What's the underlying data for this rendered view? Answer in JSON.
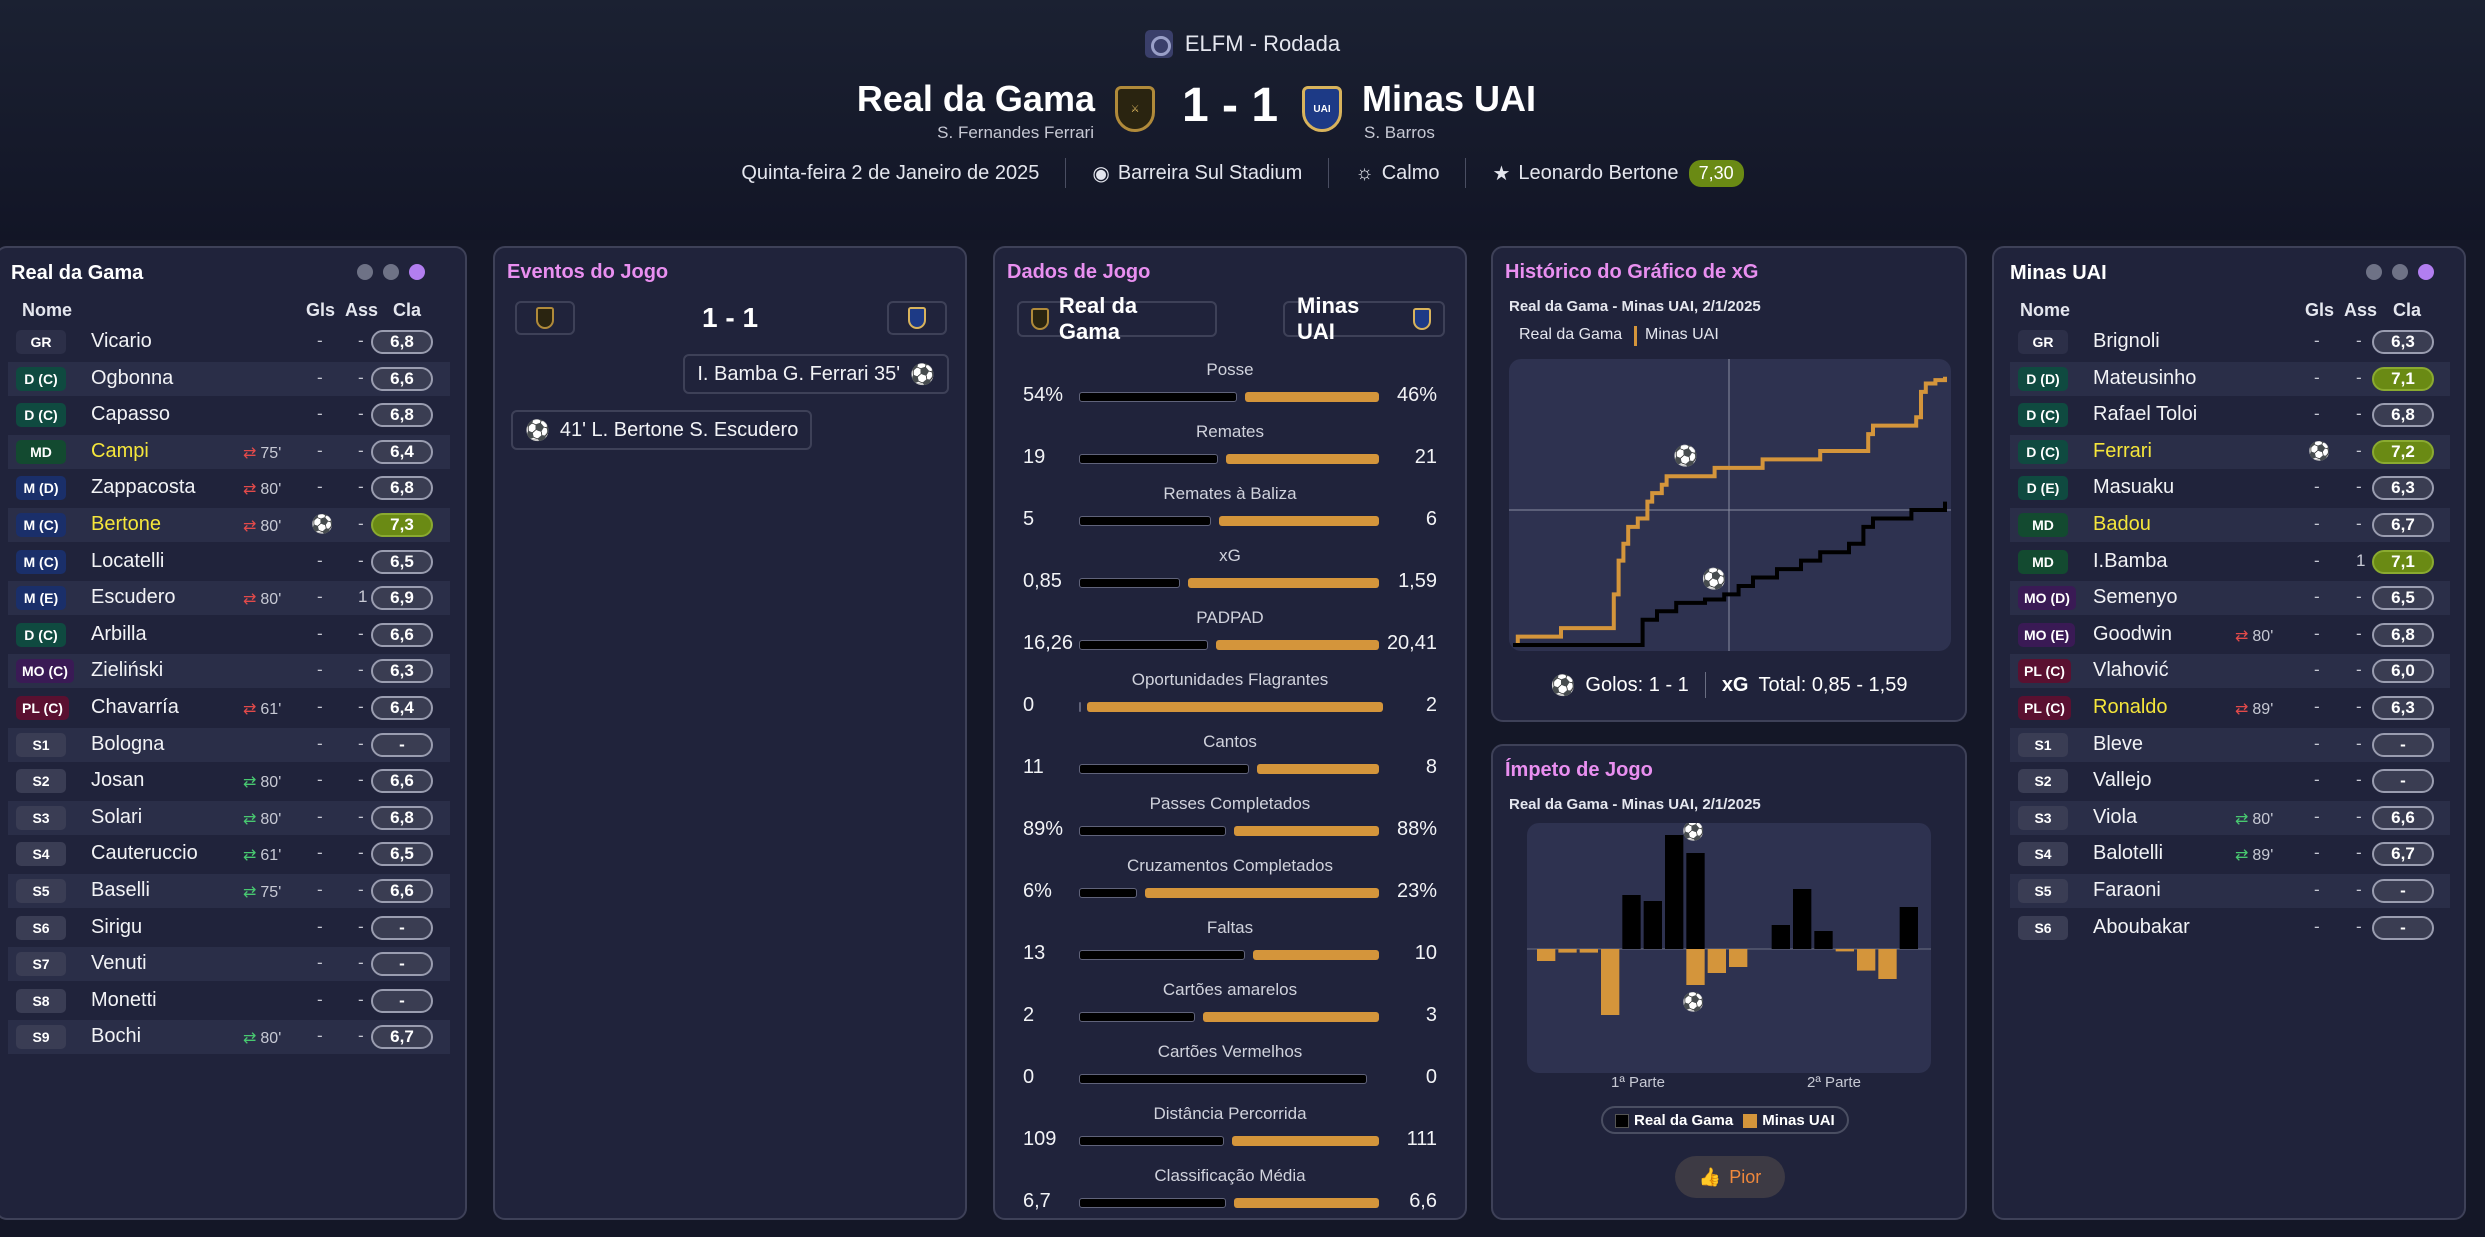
{
  "header": {
    "competition": "ELFM - Rodada",
    "home_team": "Real da Gama",
    "away_team": "Minas UAI",
    "home_manager": "S. Fernandes Ferrari",
    "away_manager": "S. Barros",
    "score": "1 - 1",
    "date": "Quinta-feira 2 de Janeiro de 2025",
    "stadium": "Barreira Sul Stadium",
    "weather": "Calmo",
    "motm_name": "Leonardo Bertone",
    "motm_rating": "7,30"
  },
  "colors": {
    "accent": "#e98ff0",
    "home": "#000000",
    "away": "#d4953b",
    "rating_good": "#6a8a14"
  },
  "icons": {
    "stadium": "stadium-icon",
    "weather": "sun-icon",
    "motm": "star-icon",
    "goal": "football-icon",
    "sub": "substitution-icon",
    "thumb": "thumbs-up-icon"
  },
  "home_panel": {
    "title": "Real da Gama",
    "col_name": "Nome",
    "col_goals": "Gls",
    "col_assists": "Ass",
    "col_rating": "Cla",
    "players": [
      {
        "pos": "GR",
        "name": "Vicario",
        "sub": "",
        "goal_icon": false,
        "gls": "-",
        "ass": "-",
        "rating": "6,8",
        "hl": false,
        "good": false
      },
      {
        "pos": "D (C)",
        "name": "Ogbonna",
        "sub": "",
        "goal_icon": false,
        "gls": "-",
        "ass": "-",
        "rating": "6,6",
        "hl": false,
        "good": false
      },
      {
        "pos": "D (C)",
        "name": "Capasso",
        "sub": "",
        "goal_icon": false,
        "gls": "-",
        "ass": "-",
        "rating": "6,8",
        "hl": false,
        "good": false
      },
      {
        "pos": "MD",
        "name": "Campi",
        "sub": "75'",
        "subdir": "out",
        "goal_icon": false,
        "gls": "-",
        "ass": "-",
        "rating": "6,4",
        "hl": true,
        "good": false
      },
      {
        "pos": "M (D)",
        "name": "Zappacosta",
        "sub": "80'",
        "subdir": "out",
        "goal_icon": false,
        "gls": "-",
        "ass": "-",
        "rating": "6,8",
        "hl": false,
        "good": false
      },
      {
        "pos": "M (C)",
        "name": "Bertone",
        "sub": "80'",
        "subdir": "out",
        "goal_icon": true,
        "gls": "",
        "ass": "-",
        "rating": "7,3",
        "hl": true,
        "good": true
      },
      {
        "pos": "M (C)",
        "name": "Locatelli",
        "sub": "",
        "goal_icon": false,
        "gls": "-",
        "ass": "-",
        "rating": "6,5",
        "hl": false,
        "good": false
      },
      {
        "pos": "M (E)",
        "name": "Escudero",
        "sub": "80'",
        "subdir": "out",
        "goal_icon": false,
        "gls": "-",
        "ass": "1",
        "rating": "6,9",
        "hl": false,
        "good": false
      },
      {
        "pos": "D (C)",
        "name": "Arbilla",
        "sub": "",
        "goal_icon": false,
        "gls": "-",
        "ass": "-",
        "rating": "6,6",
        "hl": false,
        "good": false
      },
      {
        "pos": "MO (C)",
        "name": "Zieliński",
        "sub": "",
        "goal_icon": false,
        "gls": "-",
        "ass": "-",
        "rating": "6,3",
        "hl": false,
        "good": false
      },
      {
        "pos": "PL (C)",
        "name": "Chavarría",
        "sub": "61'",
        "subdir": "out",
        "goal_icon": false,
        "gls": "-",
        "ass": "-",
        "rating": "6,4",
        "hl": false,
        "good": false
      },
      {
        "pos": "S1",
        "name": "Bologna",
        "sub": "",
        "goal_icon": false,
        "gls": "-",
        "ass": "-",
        "rating": "-",
        "hl": false,
        "good": false
      },
      {
        "pos": "S2",
        "name": "Josan",
        "sub": "80'",
        "subdir": "in",
        "goal_icon": false,
        "gls": "-",
        "ass": "-",
        "rating": "6,6",
        "hl": false,
        "good": false
      },
      {
        "pos": "S3",
        "name": "Solari",
        "sub": "80'",
        "subdir": "in",
        "goal_icon": false,
        "gls": "-",
        "ass": "-",
        "rating": "6,8",
        "hl": false,
        "good": false
      },
      {
        "pos": "S4",
        "name": "Cauteruccio",
        "sub": "61'",
        "subdir": "in",
        "goal_icon": false,
        "gls": "-",
        "ass": "-",
        "rating": "6,5",
        "hl": false,
        "good": false
      },
      {
        "pos": "S5",
        "name": "Baselli",
        "sub": "75'",
        "subdir": "in",
        "goal_icon": false,
        "gls": "-",
        "ass": "-",
        "rating": "6,6",
        "hl": false,
        "good": false
      },
      {
        "pos": "S6",
        "name": "Sirigu",
        "sub": "",
        "goal_icon": false,
        "gls": "-",
        "ass": "-",
        "rating": "-",
        "hl": false,
        "good": false
      },
      {
        "pos": "S7",
        "name": "Venuti",
        "sub": "",
        "goal_icon": false,
        "gls": "-",
        "ass": "-",
        "rating": "-",
        "hl": false,
        "good": false
      },
      {
        "pos": "S8",
        "name": "Monetti",
        "sub": "",
        "goal_icon": false,
        "gls": "-",
        "ass": "-",
        "rating": "-",
        "hl": false,
        "good": false
      },
      {
        "pos": "S9",
        "name": "Bochi",
        "sub": "80'",
        "subdir": "in",
        "goal_icon": false,
        "gls": "-",
        "ass": "-",
        "rating": "6,7",
        "hl": false,
        "good": false
      }
    ]
  },
  "away_panel": {
    "title": "Minas UAI",
    "col_name": "Nome",
    "col_goals": "Gls",
    "col_assists": "Ass",
    "col_rating": "Cla",
    "players": [
      {
        "pos": "GR",
        "name": "Brignoli",
        "sub": "",
        "goal_icon": false,
        "gls": "-",
        "ass": "-",
        "rating": "6,3",
        "hl": false,
        "good": false
      },
      {
        "pos": "D (D)",
        "name": "Mateusinho",
        "sub": "",
        "goal_icon": false,
        "gls": "-",
        "ass": "-",
        "rating": "7,1",
        "hl": false,
        "good": true
      },
      {
        "pos": "D (C)",
        "name": "Rafael Toloi",
        "sub": "",
        "goal_icon": false,
        "gls": "-",
        "ass": "-",
        "rating": "6,8",
        "hl": false,
        "good": false
      },
      {
        "pos": "D (C)",
        "name": "Ferrari",
        "sub": "",
        "goal_icon": true,
        "gls": "",
        "ass": "-",
        "rating": "7,2",
        "hl": true,
        "good": true
      },
      {
        "pos": "D (E)",
        "name": "Masuaku",
        "sub": "",
        "goal_icon": false,
        "gls": "-",
        "ass": "-",
        "rating": "6,3",
        "hl": false,
        "good": false
      },
      {
        "pos": "MD",
        "name": "Badou",
        "sub": "",
        "goal_icon": false,
        "gls": "-",
        "ass": "-",
        "rating": "6,7",
        "hl": true,
        "good": false
      },
      {
        "pos": "MD",
        "name": "I.Bamba",
        "sub": "",
        "goal_icon": false,
        "gls": "-",
        "ass": "1",
        "rating": "7,1",
        "hl": false,
        "good": true
      },
      {
        "pos": "MO (D)",
        "name": "Semenyo",
        "sub": "",
        "goal_icon": false,
        "gls": "-",
        "ass": "-",
        "rating": "6,5",
        "hl": false,
        "good": false
      },
      {
        "pos": "MO (E)",
        "name": "Goodwin",
        "sub": "80'",
        "subdir": "out",
        "goal_icon": false,
        "gls": "-",
        "ass": "-",
        "rating": "6,8",
        "hl": false,
        "good": false
      },
      {
        "pos": "PL (C)",
        "name": "Vlahović",
        "sub": "",
        "goal_icon": false,
        "gls": "-",
        "ass": "-",
        "rating": "6,0",
        "hl": false,
        "good": false
      },
      {
        "pos": "PL (C)",
        "name": "Ronaldo",
        "sub": "89'",
        "subdir": "out",
        "goal_icon": false,
        "gls": "-",
        "ass": "-",
        "rating": "6,3",
        "hl": true,
        "good": false
      },
      {
        "pos": "S1",
        "name": "Bleve",
        "sub": "",
        "goal_icon": false,
        "gls": "-",
        "ass": "-",
        "rating": "-",
        "hl": false,
        "good": false
      },
      {
        "pos": "S2",
        "name": "Vallejo",
        "sub": "",
        "goal_icon": false,
        "gls": "-",
        "ass": "-",
        "rating": "-",
        "hl": false,
        "good": false
      },
      {
        "pos": "S3",
        "name": "Viola",
        "sub": "80'",
        "subdir": "in",
        "goal_icon": false,
        "gls": "-",
        "ass": "-",
        "rating": "6,6",
        "hl": false,
        "good": false
      },
      {
        "pos": "S4",
        "name": "Balotelli",
        "sub": "89'",
        "subdir": "in",
        "goal_icon": false,
        "gls": "-",
        "ass": "-",
        "rating": "6,7",
        "hl": false,
        "good": false
      },
      {
        "pos": "S5",
        "name": "Faraoni",
        "sub": "",
        "goal_icon": false,
        "gls": "-",
        "ass": "-",
        "rating": "-",
        "hl": false,
        "good": false
      },
      {
        "pos": "S6",
        "name": "Aboubakar",
        "sub": "",
        "goal_icon": false,
        "gls": "-",
        "ass": "-",
        "rating": "-",
        "hl": false,
        "good": false
      }
    ]
  },
  "events_panel": {
    "title": "Eventos do Jogo",
    "score": "1 - 1",
    "home_event": "I. Bamba  G. Ferrari 35'",
    "away_event": "41'  L. Bertone  S. Escudero"
  },
  "stats_panel": {
    "title": "Dados de Jogo",
    "home": "Real da Gama",
    "away": "Minas UAI",
    "stats": [
      {
        "label": "Posse",
        "home": "54%",
        "away": "46%",
        "hv": 54,
        "av": 46
      },
      {
        "label": "Remates",
        "home": "19",
        "away": "21",
        "hv": 19,
        "av": 21
      },
      {
        "label": "Remates à Baliza",
        "home": "5",
        "away": "6",
        "hv": 5,
        "av": 6
      },
      {
        "label": "xG",
        "home": "0,85",
        "away": "1,59",
        "hv": 0.85,
        "av": 1.59
      },
      {
        "label": "PADPAD",
        "home": "16,26",
        "away": "20,41",
        "hv": 16.26,
        "av": 20.41
      },
      {
        "label": "Oportunidades Flagrantes",
        "home": "0",
        "away": "2",
        "hv": 0,
        "av": 2
      },
      {
        "label": "Cantos",
        "home": "11",
        "away": "8",
        "hv": 11,
        "av": 8
      },
      {
        "label": "Passes Completados",
        "home": "89%",
        "away": "88%",
        "hv": 89,
        "av": 88
      },
      {
        "label": "Cruzamentos Completados",
        "home": "6%",
        "away": "23%",
        "hv": 6,
        "av": 23
      },
      {
        "label": "Faltas",
        "home": "13",
        "away": "10",
        "hv": 13,
        "av": 10
      },
      {
        "label": "Cartões amarelos",
        "home": "2",
        "away": "3",
        "hv": 2,
        "av": 3
      },
      {
        "label": "Cartões Vermelhos",
        "home": "0",
        "away": "0",
        "hv": 0,
        "av": 0
      },
      {
        "label": "Distância Percorrida",
        "home": "109",
        "away": "111",
        "hv": 109,
        "av": 111
      },
      {
        "label": "Classificação Média",
        "home": "6,7",
        "away": "6,6",
        "hv": 6.7,
        "av": 6.6
      }
    ]
  },
  "xg_panel": {
    "title": "Histórico do Gráfico de xG",
    "subtitle": "Real da Gama - Minas UAI, 2/1/2025",
    "legend_home": "Real da Gama",
    "legend_away": "Minas UAI",
    "footer_goals": "Golos: 1 - 1",
    "footer_xg_label": "xG",
    "footer_xg": "Total: 0,85 - 1,59"
  },
  "momentum_panel": {
    "title": "Ímpeto de Jogo",
    "subtitle": "Real da Gama - Minas UAI, 2/1/2025",
    "first_half": "1ª Parte",
    "second_half": "2ª Parte",
    "legend_home": "Real da Gama",
    "legend_away": "Minas UAI",
    "button": "Pior"
  },
  "chart_data": [
    {
      "type": "line",
      "title": "Histórico do Gráfico de xG",
      "xlim": [
        0,
        90
      ],
      "ylim": [
        0,
        1.6
      ],
      "series": [
        {
          "name": "Minas UAI",
          "color": "#d4953b",
          "points": [
            [
              0,
              0
            ],
            [
              1,
              0.05
            ],
            [
              9,
              0.05
            ],
            [
              10,
              0.1
            ],
            [
              20,
              0.1
            ],
            [
              21,
              0.3
            ],
            [
              22,
              0.5
            ],
            [
              23,
              0.6
            ],
            [
              24,
              0.7
            ],
            [
              26,
              0.75
            ],
            [
              28,
              0.85
            ],
            [
              29,
              0.9
            ],
            [
              31,
              0.95
            ],
            [
              32,
              1.0
            ],
            [
              42,
              1.05
            ],
            [
              52,
              1.1
            ],
            [
              63,
              1.1
            ],
            [
              64,
              1.15
            ],
            [
              73,
              1.15
            ],
            [
              74,
              1.25
            ],
            [
              75,
              1.3
            ],
            [
              84,
              1.35
            ],
            [
              85,
              1.5
            ],
            [
              86,
              1.55
            ],
            [
              88,
              1.57
            ],
            [
              90,
              1.59
            ]
          ]
        },
        {
          "name": "Real da Gama",
          "color": "#000000",
          "points": [
            [
              0,
              0
            ],
            [
              26,
              0
            ],
            [
              27,
              0.15
            ],
            [
              30,
              0.2
            ],
            [
              34,
              0.25
            ],
            [
              40,
              0.27
            ],
            [
              44,
              0.3
            ],
            [
              47,
              0.35
            ],
            [
              50,
              0.4
            ],
            [
              55,
              0.45
            ],
            [
              60,
              0.5
            ],
            [
              64,
              0.55
            ],
            [
              70,
              0.6
            ],
            [
              73,
              0.7
            ],
            [
              75,
              0.75
            ],
            [
              83,
              0.8
            ],
            [
              89,
              0.8
            ],
            [
              90,
              0.85
            ]
          ]
        }
      ],
      "goals": [
        {
          "team": "Minas UAI",
          "minute": 35
        },
        {
          "team": "Real da Gama",
          "minute": 41
        }
      ]
    },
    {
      "type": "bar",
      "title": "Ímpeto de Jogo",
      "xlabels": [
        "1ª Parte",
        "2ª Parte"
      ],
      "ylim": [
        -1,
        1
      ],
      "series": [
        {
          "name": "Real da Gama",
          "color": "#000000",
          "values": [
            0,
            0,
            0,
            0,
            0.45,
            0.4,
            0.95,
            0.8,
            0,
            0,
            0,
            0.2,
            0.5,
            0.15,
            0,
            0,
            0,
            0.35
          ]
        },
        {
          "name": "Minas UAI",
          "color": "#d4953b",
          "values": [
            -0.1,
            -0.03,
            -0.03,
            -0.55,
            0,
            0,
            0,
            -0.3,
            -0.2,
            -0.15,
            0,
            0,
            0,
            0,
            -0.02,
            -0.18,
            -0.25,
            0
          ]
        }
      ],
      "goals": [
        {
          "team": "Real da Gama",
          "bar": 7
        },
        {
          "team": "Minas UAI",
          "bar": 7
        }
      ]
    }
  ]
}
